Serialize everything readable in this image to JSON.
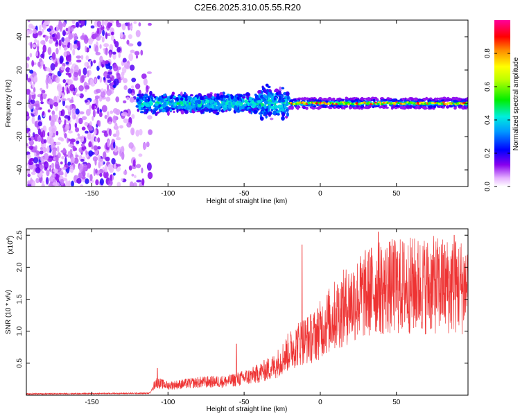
{
  "title": "C2E6.2025.310.05.55.R20",
  "chart_data": [
    {
      "type": "heatmap",
      "xlabel": "Height of straight line (km)",
      "ylabel": "Frequency (Hz)",
      "xlim": [
        -193,
        97
      ],
      "ylim": [
        -50,
        50
      ],
      "x_ticks": [
        -150,
        -100,
        -50,
        0,
        50
      ],
      "y_ticks": [
        -40,
        -20,
        0,
        20,
        40
      ],
      "colorbar": {
        "label": "Normalized spectral amplitude",
        "range": [
          0,
          1
        ],
        "ticks": [
          0.0,
          0.2,
          0.4,
          0.6,
          0.8
        ],
        "colormap": "rainbow"
      },
      "regions": [
        {
          "x_range": [
            -193,
            -120
          ],
          "description": "broadband noise",
          "amplitude": 0.15
        },
        {
          "x_range": [
            -120,
            -20
          ],
          "freq_center": 0,
          "freq_halfwidth": 6,
          "amplitude": 0.3
        },
        {
          "x_range": [
            -20,
            97
          ],
          "freq_center": 0,
          "freq_halfwidth": 3,
          "amplitude": 0.9
        }
      ]
    },
    {
      "type": "line",
      "xlabel": "Height of straight line (km)",
      "ylabel": "SNR (10 * v/v)",
      "y_scale_label": "(x10",
      "y_scale_exp": "4",
      "xlim": [
        -193,
        97
      ],
      "ylim": [
        0,
        2.6
      ],
      "x_ticks": [
        -150,
        -100,
        -50,
        0,
        50
      ],
      "y_ticks": [
        0.5,
        1.0,
        1.5,
        2.0,
        2.5
      ],
      "grid": false,
      "series": [
        {
          "color": "#ee3333",
          "trend": {
            "x": [
              -193,
              -112,
              -108,
              -100,
              -80,
              -60,
              -45,
              -30,
              -20,
              -12,
              -5,
              5,
              20,
              35,
              50,
              70,
              97
            ],
            "y": [
              0.02,
              0.03,
              0.2,
              0.15,
              0.2,
              0.22,
              0.3,
              0.45,
              0.7,
              0.85,
              0.9,
              1.15,
              1.45,
              1.65,
              1.7,
              1.72,
              1.7
            ]
          },
          "peaks": [
            {
              "x": -107,
              "y": 0.42
            },
            {
              "x": -55,
              "y": 0.8
            },
            {
              "x": -12,
              "y": 2.35
            },
            {
              "x": 38,
              "y": 2.55
            },
            {
              "x": 88,
              "y": 2.5
            }
          ]
        }
      ]
    }
  ]
}
